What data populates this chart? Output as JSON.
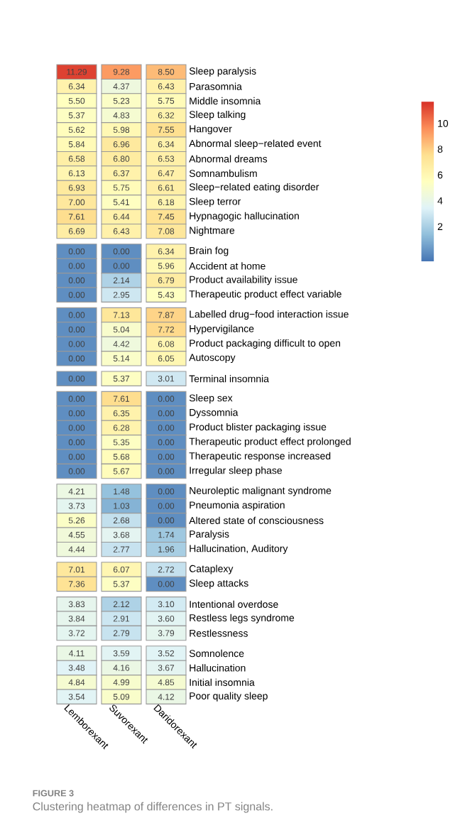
{
  "chart_data": [
    {
      "type": "heatmap",
      "categories": [
        null,
        null,
        null
      ],
      "y_categories": [
        "Sleep paralysis",
        "Parasomnia",
        "Middle insomnia",
        "Sleep talking",
        "Hangover",
        "Abnormal sleep−related event",
        "Abnormal dreams",
        "Somnambulism",
        "Sleep−related eating disorder",
        "Sleep terror",
        "Hypnagogic hallucination",
        "Nightmare"
      ],
      "cells": [
        [
          11.29,
          9.28,
          8.5
        ],
        [
          6.34,
          4.37,
          6.43
        ],
        [
          5.5,
          5.23,
          5.75
        ],
        [
          5.37,
          4.83,
          6.32
        ],
        [
          5.62,
          5.98,
          7.55
        ],
        [
          5.84,
          6.96,
          6.34
        ],
        [
          6.58,
          6.8,
          6.53
        ],
        [
          6.13,
          6.37,
          6.47
        ],
        [
          6.93,
          5.75,
          6.61
        ],
        [
          7.0,
          5.41,
          6.18
        ],
        [
          7.61,
          6.44,
          7.45
        ],
        [
          6.69,
          6.43,
          7.08
        ]
      ],
      "cell_labels": [
        [
          "11.29",
          "9.28",
          "8.50"
        ],
        [
          "6.34",
          "4.37",
          "6.43"
        ],
        [
          "5.50",
          "5.23",
          "5.75"
        ],
        [
          "5.37",
          "4.83",
          "6.32"
        ],
        [
          "5.62",
          "5.98",
          "7.55"
        ],
        [
          "5.84",
          "6.96",
          "6.34"
        ],
        [
          "6.58",
          "6.80",
          "6.53"
        ],
        [
          "6.13",
          "6.37",
          "6.47"
        ],
        [
          "6.93",
          "5.75",
          "6.61"
        ],
        [
          "7.00",
          "5.41",
          "6.18"
        ],
        [
          "7.61",
          "6.44",
          "7.45"
        ],
        [
          "6.69",
          "6.43",
          "7.08"
        ]
      ],
      "tick_labels": "y",
      "clim": [
        -0.7,
        11.7
      ],
      "cticks": [
        2,
        4,
        6,
        8,
        10
      ]
    },
    {
      "type": "heatmap",
      "categories": [
        null,
        null,
        null
      ],
      "y_categories": [
        "Brain fog",
        "Accident at home",
        "Product availability issue",
        "Therapeutic product effect variable"
      ],
      "cells": [
        [
          0,
          0,
          6.34
        ],
        [
          0,
          0,
          5.96
        ],
        [
          0,
          2.14,
          6.79
        ],
        [
          0,
          2.95,
          5.43
        ]
      ],
      "cell_labels": [
        [
          "0.00",
          "0.00",
          "6.34"
        ],
        [
          "0.00",
          "0.00",
          "5.96"
        ],
        [
          "0.00",
          "2.14",
          "6.79"
        ],
        [
          "0.00",
          "2.95",
          "5.43"
        ]
      ],
      "tick_labels": "y"
    },
    {
      "type": "heatmap",
      "categories": [
        null,
        null,
        null
      ],
      "y_categories": [
        "Labelled drug−food interaction issue",
        "Hypervigilance",
        "Product packaging difficult to open",
        "Autoscopy"
      ],
      "cells": [
        [
          0,
          7.13,
          7.87
        ],
        [
          0,
          5.04,
          7.72
        ],
        [
          0,
          4.42,
          6.08
        ],
        [
          0,
          5.14,
          6.05
        ]
      ],
      "cell_labels": [
        [
          "0.00",
          "7.13",
          "7.87"
        ],
        [
          "0.00",
          "5.04",
          "7.72"
        ],
        [
          "0.00",
          "4.42",
          "6.08"
        ],
        [
          "0.00",
          "5.14",
          "6.05"
        ]
      ],
      "tick_labels": "y"
    },
    {
      "type": "heatmap",
      "categories": [
        null,
        null,
        null
      ],
      "y_categories": [
        "Terminal insomnia"
      ],
      "cells": [
        [
          0,
          5.37,
          3.01
        ]
      ],
      "cell_labels": [
        [
          "0.00",
          "5.37",
          "3.01"
        ]
      ],
      "tick_labels": "y"
    },
    {
      "type": "heatmap",
      "categories": [
        null,
        null,
        null
      ],
      "y_categories": [
        "Sleep sex",
        "Dyssomnia",
        "Product blister packaging issue",
        "Therapeutic product effect prolonged",
        "Therapeutic response increased",
        "Irregular sleep phase"
      ],
      "cells": [
        [
          0,
          7.61,
          0
        ],
        [
          0,
          6.35,
          0
        ],
        [
          0,
          6.28,
          0
        ],
        [
          0,
          5.35,
          0
        ],
        [
          0,
          5.68,
          0
        ],
        [
          0,
          5.67,
          0
        ]
      ],
      "cell_labels": [
        [
          "0.00",
          "7.61",
          "0.00"
        ],
        [
          "0.00",
          "6.35",
          "0.00"
        ],
        [
          "0.00",
          "6.28",
          "0.00"
        ],
        [
          "0.00",
          "5.35",
          "0.00"
        ],
        [
          "0.00",
          "5.68",
          "0.00"
        ],
        [
          "0.00",
          "5.67",
          "0.00"
        ]
      ],
      "tick_labels": "y"
    },
    {
      "type": "heatmap",
      "categories": [
        null,
        null,
        null
      ],
      "y_categories": [
        "Neuroleptic malignant syndrome",
        "Pneumonia aspiration",
        "Altered state of consciousness",
        "Paralysis",
        "Hallucination, Auditory"
      ],
      "cells": [
        [
          4.21,
          1.48,
          0
        ],
        [
          3.73,
          1.03,
          0
        ],
        [
          5.26,
          2.68,
          0
        ],
        [
          4.55,
          3.68,
          1.74
        ],
        [
          4.44,
          2.77,
          1.96
        ]
      ],
      "cell_labels": [
        [
          "4.21",
          "1.48",
          "0.00"
        ],
        [
          "3.73",
          "1.03",
          "0.00"
        ],
        [
          "5.26",
          "2.68",
          "0.00"
        ],
        [
          "4.55",
          "3.68",
          "1.74"
        ],
        [
          "4.44",
          "2.77",
          "1.96"
        ]
      ],
      "tick_labels": "y"
    },
    {
      "type": "heatmap",
      "categories": [
        null,
        null,
        null
      ],
      "y_categories": [
        "Cataplexy",
        "Sleep attacks"
      ],
      "cells": [
        [
          7.01,
          6.07,
          2.72
        ],
        [
          7.36,
          5.37,
          0
        ]
      ],
      "cell_labels": [
        [
          "7.01",
          "6.07",
          "2.72"
        ],
        [
          "7.36",
          "5.37",
          "0.00"
        ]
      ],
      "tick_labels": "y"
    },
    {
      "type": "heatmap",
      "categories": [
        null,
        null,
        null
      ],
      "y_categories": [
        "Intentional overdose",
        "Restless legs syndrome",
        "Restlessness"
      ],
      "cells": [
        [
          3.83,
          2.12,
          3.1
        ],
        [
          3.84,
          2.91,
          3.6
        ],
        [
          3.72,
          2.79,
          3.79
        ]
      ],
      "cell_labels": [
        [
          "3.83",
          "2.12",
          "3.10"
        ],
        [
          "3.84",
          "2.91",
          "3.60"
        ],
        [
          "3.72",
          "2.79",
          "3.79"
        ]
      ],
      "tick_labels": "y"
    },
    {
      "type": "heatmap",
      "categories": [
        "Lemborexant",
        "Suvorexant",
        "Daridorexant"
      ],
      "y_categories": [
        "Somnolence",
        "Hallucination",
        "Initial insomnia",
        "Poor quality sleep"
      ],
      "cells": [
        [
          4.11,
          3.59,
          3.52
        ],
        [
          3.48,
          4.16,
          3.67
        ],
        [
          4.84,
          4.99,
          4.85
        ],
        [
          3.54,
          5.09,
          4.12
        ]
      ],
      "cell_labels": [
        [
          "4.11",
          "3.59",
          "3.52"
        ],
        [
          "3.48",
          "4.16",
          "3.67"
        ],
        [
          "4.84",
          "4.99",
          "4.85"
        ],
        [
          "3.54",
          "5.09",
          "4.12"
        ]
      ],
      "annotations": [
        "FIGURE 3",
        "Clustering heatmap of differences in PT signals."
      ]
    }
  ]
}
